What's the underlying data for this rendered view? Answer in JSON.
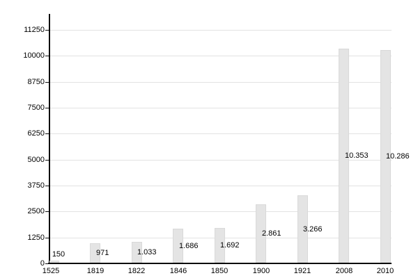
{
  "chart_data": {
    "type": "bar",
    "title": "",
    "xlabel": "",
    "ylabel": "",
    "categories": [
      "1525",
      "1819",
      "1822",
      "1846",
      "1850",
      "1900",
      "1921",
      "2008",
      "2010"
    ],
    "values": [
      150,
      971,
      1033,
      1686,
      1692,
      2861,
      3266,
      10353,
      10286
    ],
    "value_labels": [
      "150",
      "971",
      "1.033",
      "1.686",
      "1.692",
      "2.861",
      "3.266",
      "10.353",
      "10.286"
    ],
    "y_ticks": [
      0,
      1250,
      2500,
      3750,
      5000,
      6250,
      7500,
      8750,
      10000,
      11250
    ],
    "y_tick_labels": [
      "0",
      "1250",
      "2500",
      "3750",
      "5000",
      "6250",
      "7500",
      "8750",
      "10000",
      "11250"
    ],
    "ylim": [
      0,
      11250
    ],
    "grid": true,
    "legend_position": "none",
    "colors": {
      "background": "#ffffff",
      "bar_fill": "#e4e4e4",
      "bar_border": "#d9d9d9",
      "gridline": "#e2e2e2",
      "axis": "#0a0a0a",
      "text": "#000000"
    }
  }
}
